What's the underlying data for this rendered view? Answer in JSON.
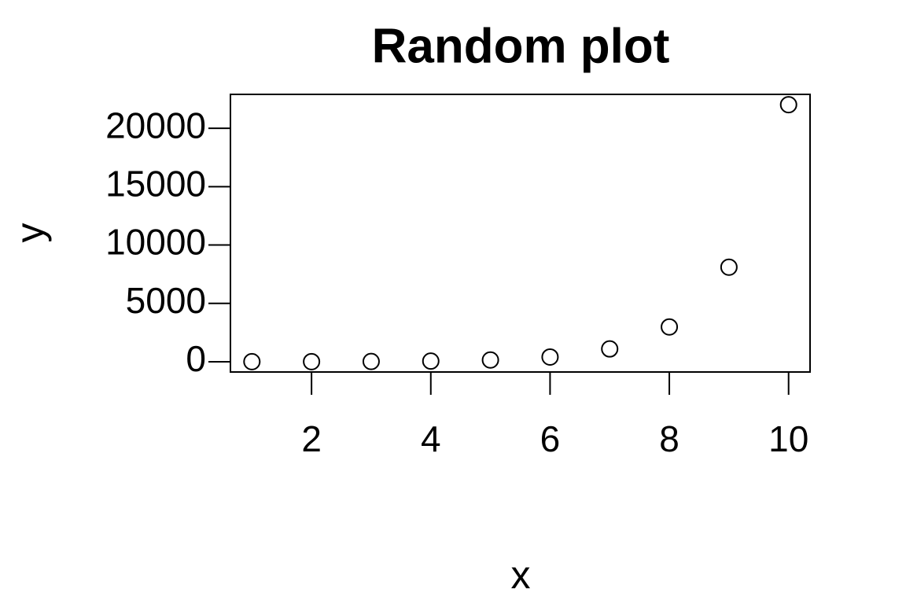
{
  "chart_data": {
    "type": "scatter",
    "title": "Random plot",
    "x_label": "x",
    "y_label": "y",
    "x": [
      1,
      2,
      3,
      4,
      5,
      6,
      7,
      8,
      9,
      10
    ],
    "values": [
      3,
      7,
      20,
      55,
      148,
      403,
      1097,
      2981,
      8103,
      22026
    ],
    "color": "#000000",
    "xlim": [
      0.64,
      10.36
    ],
    "xticks": [
      2,
      4,
      6,
      8,
      10
    ],
    "ylim": [
      -880,
      22910
    ],
    "yticks": [
      0,
      5000,
      10000,
      15000,
      20000
    ],
    "grid": false
  }
}
